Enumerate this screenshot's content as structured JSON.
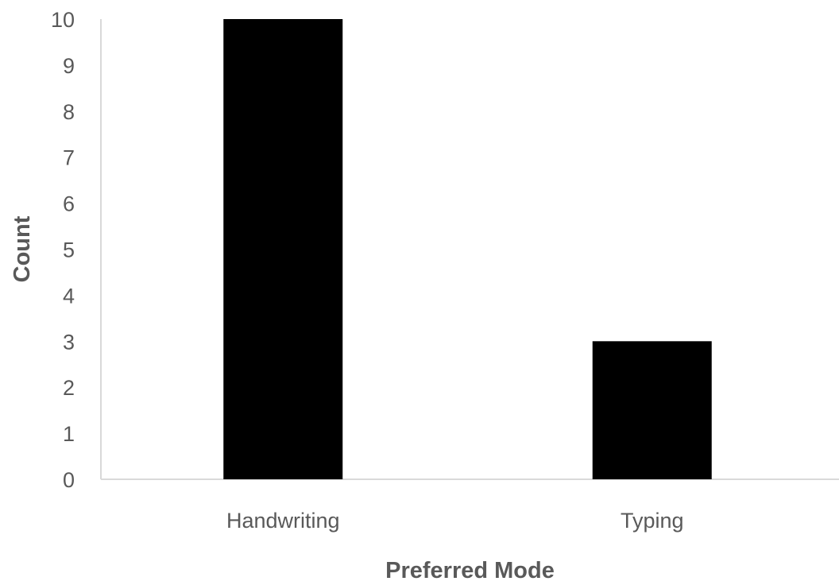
{
  "chart_data": {
    "type": "bar",
    "categories": [
      "Handwriting",
      "Typing"
    ],
    "values": [
      10,
      3
    ],
    "title": "",
    "xlabel": "Preferred Mode",
    "ylabel": "Count",
    "ylim": [
      0,
      10
    ],
    "yticks": [
      "0",
      "1",
      "2",
      "3",
      "4",
      "5",
      "6",
      "7",
      "8",
      "9",
      "10"
    ],
    "grid": false,
    "legend": "none",
    "bar_color": "#000000"
  }
}
